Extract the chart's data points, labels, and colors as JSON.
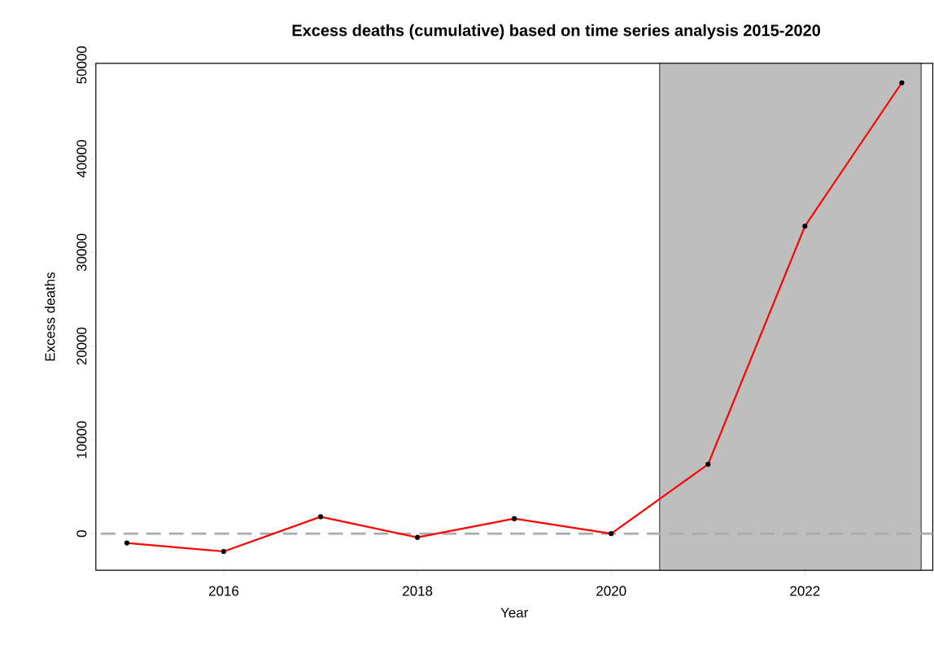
{
  "chart_data": {
    "type": "line",
    "title": "Excess deaths (cumulative) based on time series analysis 2015-2020",
    "xlabel": "Year",
    "ylabel": "Excess deaths",
    "x": [
      2015,
      2016,
      2017,
      2018,
      2019,
      2020,
      2021,
      2022,
      2023
    ],
    "series": [
      {
        "color": "#ff0000",
        "values": [
          -1000,
          -1900,
          1800,
          -400,
          1600,
          0,
          7400,
          32800,
          48100
        ]
      }
    ],
    "xlim": [
      2014.68,
      2023.32
    ],
    "ylim": [
      -3900,
      50170
    ],
    "xticks": [
      2016,
      2018,
      2020,
      2022
    ],
    "yticks": [
      0,
      10000,
      20000,
      30000,
      40000,
      50000
    ],
    "ref_lines": [
      {
        "axis": "y",
        "value": 0,
        "color": "#aaaaaa",
        "line_style": "dashed"
      }
    ],
    "bands": [
      {
        "axis": "x",
        "from": 2020.5,
        "to": 2023.2,
        "color": "#bebebe"
      }
    ],
    "marker": "circle",
    "line_style": "solid",
    "grid": false
  }
}
